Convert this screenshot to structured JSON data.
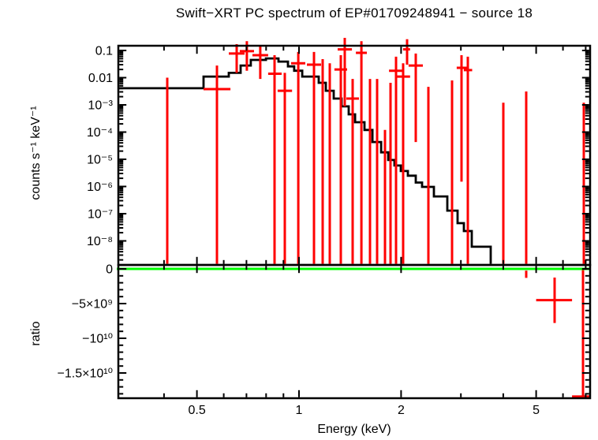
{
  "title": "Swift−XRT PC spectrum of EP#01709248941 − source 18",
  "axes": {
    "x_label": "Energy (keV)",
    "y_label_top": "counts s⁻¹ keV⁻¹",
    "y_label_bottom": "ratio",
    "x_scale": "log",
    "x_range_kev": [
      0.29,
      7.24
    ],
    "x_ticks": [
      {
        "v": 0.5,
        "label": "0.5"
      },
      {
        "v": 1,
        "label": "1"
      },
      {
        "v": 2,
        "label": "2"
      },
      {
        "v": 5,
        "label": "5"
      }
    ],
    "x_minor_ticks": [
      0.4,
      0.6,
      0.7,
      0.8,
      0.9,
      3,
      4,
      6,
      7
    ],
    "y_top_scale": "log",
    "y_top_range": [
      1.3e-09,
      0.15
    ],
    "y_top_ticks": [
      {
        "v": 0.1,
        "label": "0.1"
      },
      {
        "v": 0.01,
        "label": "0.01"
      },
      {
        "v": 0.001,
        "label": "10⁻³"
      },
      {
        "v": 0.0001,
        "label": "10⁻⁴"
      },
      {
        "v": 1e-05,
        "label": "10⁻⁵"
      },
      {
        "v": 1e-06,
        "label": "10⁻⁶"
      },
      {
        "v": 1e-07,
        "label": "10⁻⁷"
      },
      {
        "v": 1e-08,
        "label": "10⁻⁸"
      }
    ],
    "y_bottom_scale": "linear",
    "y_bottom_range": [
      -18700000000.0,
      570000000.0
    ],
    "y_bottom_ticks": [
      {
        "v": 0,
        "label": "0"
      },
      {
        "v": -5000000000.0,
        "label": "−5×10⁹"
      },
      {
        "v": -10000000000.0,
        "label": "−10¹⁰"
      },
      {
        "v": -15000000000.0,
        "label": "−1.5×10¹⁰"
      }
    ]
  },
  "colors": {
    "background": "#ffffff",
    "frame": "#000000",
    "model": "#000000",
    "data": "#ff0000",
    "reference_line": "#00ff00",
    "text": "#000000"
  },
  "chart_data": {
    "type": "step-line+errorbar-scatter",
    "layout": "two stacked panels sharing a log energy axis; grid off; no legend",
    "note": "In panel points, ylo=0 (spectrum) means the error bar extends to the panel bottom; y=null means only a vertical error line is drawn (no horizontal bar).",
    "panels": [
      {
        "name": "spectrum",
        "ylabel": "counts s⁻¹ keV⁻¹",
        "yscale": "log",
        "model": {
          "edges_kev": [
            0.293,
            0.523,
            0.621,
            0.673,
            0.721,
            0.799,
            0.87,
            0.928,
            0.968,
            1.022,
            1.143,
            1.2,
            1.266,
            1.335,
            1.401,
            1.463,
            1.56,
            1.646,
            1.746,
            1.832,
            1.912,
            1.995,
            2.094,
            2.209,
            2.306,
            2.499,
            2.736,
            2.934,
            3.062,
            3.231,
            3.674
          ],
          "rates": [
            0.0041,
            0.011,
            0.015,
            0.028,
            0.045,
            0.051,
            0.039,
            0.026,
            0.018,
            0.011,
            0.0065,
            0.0033,
            0.0017,
            0.00088,
            0.00045,
            0.00023,
            0.00012,
            4.3e-05,
            1.8e-05,
            9.4e-06,
            5.9e-06,
            3.7e-06,
            2.5e-06,
            1.4e-06,
            9.7e-07,
            4.3e-07,
            1.3e-07,
            4.5e-08,
            2.3e-08,
            6.1e-09
          ]
        },
        "points": [
          {
            "e": 0.409,
            "y": null,
            "yhi": 0.01,
            "ylo": 0
          },
          {
            "e": 0.573,
            "elo": 0.523,
            "ehi": 0.628,
            "y": 0.0038,
            "yhi": 0.028,
            "ylo": 0
          },
          {
            "e": 0.655,
            "elo": 0.621,
            "ehi": 0.691,
            "y": 0.077,
            "yhi": 0.17,
            "ylo": 0.015
          },
          {
            "e": 0.702,
            "elo": 0.669,
            "ehi": 0.737,
            "y": 0.094,
            "yhi": 0.22,
            "ylo": 0.018
          },
          {
            "e": 0.769,
            "elo": 0.729,
            "ehi": 0.811,
            "y": 0.067,
            "yhi": 0.15,
            "ylo": 0.009
          },
          {
            "e": 0.847,
            "elo": 0.811,
            "ehi": 0.889,
            "y": 0.014,
            "yhi": 0.067,
            "ylo": 0
          },
          {
            "e": 0.908,
            "elo": 0.865,
            "ehi": 0.954,
            "y": 0.0033,
            "yhi": 0.015,
            "ylo": 0
          },
          {
            "e": 0.995,
            "elo": 0.948,
            "ehi": 1.044,
            "y": 0.034,
            "yhi": 0.088,
            "ylo": 0
          },
          {
            "e": 1.107,
            "elo": 1.055,
            "ehi": 1.162,
            "y": 0.03,
            "yhi": 0.088,
            "ylo": 0
          },
          {
            "e": 1.174,
            "y": null,
            "yhi": 0.048,
            "ylo": 0
          },
          {
            "e": 1.232,
            "y": null,
            "yhi": 0.034,
            "ylo": 0
          },
          {
            "e": 1.328,
            "elo": 1.272,
            "ehi": 1.386,
            "y": 0.02,
            "yhi": 0.067,
            "ylo": 0
          },
          {
            "e": 1.364,
            "elo": 1.3,
            "ehi": 1.432,
            "y": 0.11,
            "yhi": 0.29,
            "ylo": 0.00088
          },
          {
            "e": 1.439,
            "elo": 1.379,
            "ehi": 1.502,
            "y": 0.0017,
            "yhi": 0.009,
            "ylo": 0
          },
          {
            "e": 1.527,
            "elo": 1.471,
            "ehi": 1.585,
            "y": 0.082,
            "yhi": 0.22,
            "ylo": 0
          },
          {
            "e": 1.619,
            "y": null,
            "yhi": 0.009,
            "ylo": 0
          },
          {
            "e": 1.699,
            "y": null,
            "yhi": 0.009,
            "ylo": 0
          },
          {
            "e": 1.793,
            "y": null,
            "yhi": 0.00012,
            "ylo": 0
          },
          {
            "e": 1.861,
            "y": null,
            "yhi": 0.0065,
            "ylo": 0
          },
          {
            "e": 1.932,
            "elo": 1.842,
            "ehi": 2.027,
            "y": 0.018,
            "yhi": 0.059,
            "ylo": 0
          },
          {
            "e": 2.028,
            "elo": 1.932,
            "ehi": 2.125,
            "y": 0.011,
            "yhi": 0.034,
            "ylo": 0
          },
          {
            "e": 2.083,
            "elo": 2.027,
            "ehi": 2.125,
            "y": 0.11,
            "yhi": 0.26,
            "ylo": 0.03
          },
          {
            "e": 2.209,
            "elo": 2.104,
            "ehi": 2.318,
            "y": 0.028,
            "yhi": 0.077,
            "ylo": 4.3e-05
          },
          {
            "e": 2.407,
            "y": null,
            "yhi": 0.0046,
            "ylo": 0
          },
          {
            "e": 2.826,
            "y": null,
            "yhi": 0.0079,
            "ylo": 0
          },
          {
            "e": 3.014,
            "elo": 2.916,
            "ehi": 3.133,
            "y": 0.023,
            "yhi": 0.067,
            "ylo": 1.5e-06
          },
          {
            "e": 3.146,
            "elo": 3.061,
            "ehi": 3.239,
            "y": 0.019,
            "yhi": 0.059,
            "ylo": 0
          },
          {
            "e": 4.002,
            "y": null,
            "yhi": 0.0012,
            "ylo": 0
          },
          {
            "e": 4.675,
            "y": null,
            "yhi": 0.0031,
            "ylo": 0
          },
          {
            "e": 6.91,
            "y": null,
            "yhi": 0.0012,
            "ylo": 0
          }
        ]
      },
      {
        "name": "ratio",
        "ylabel": "ratio",
        "yscale": "linear",
        "reference_y": 0,
        "points": [
          {
            "e": 4.675,
            "y": null,
            "yhi": -250000000.0,
            "ylo": -1300000000.0
          },
          {
            "e": 5.668,
            "elo": 5.0,
            "ehi": 6.38,
            "y": -4500000000.0,
            "yhi": -1250000000.0,
            "ylo": -7800000000.0
          },
          {
            "e": 6.873,
            "elo": 6.38,
            "ehi": 7.3,
            "y": -18400000000.0,
            "yhi": 0,
            "ylo": -18700000000.0
          }
        ]
      }
    ]
  }
}
